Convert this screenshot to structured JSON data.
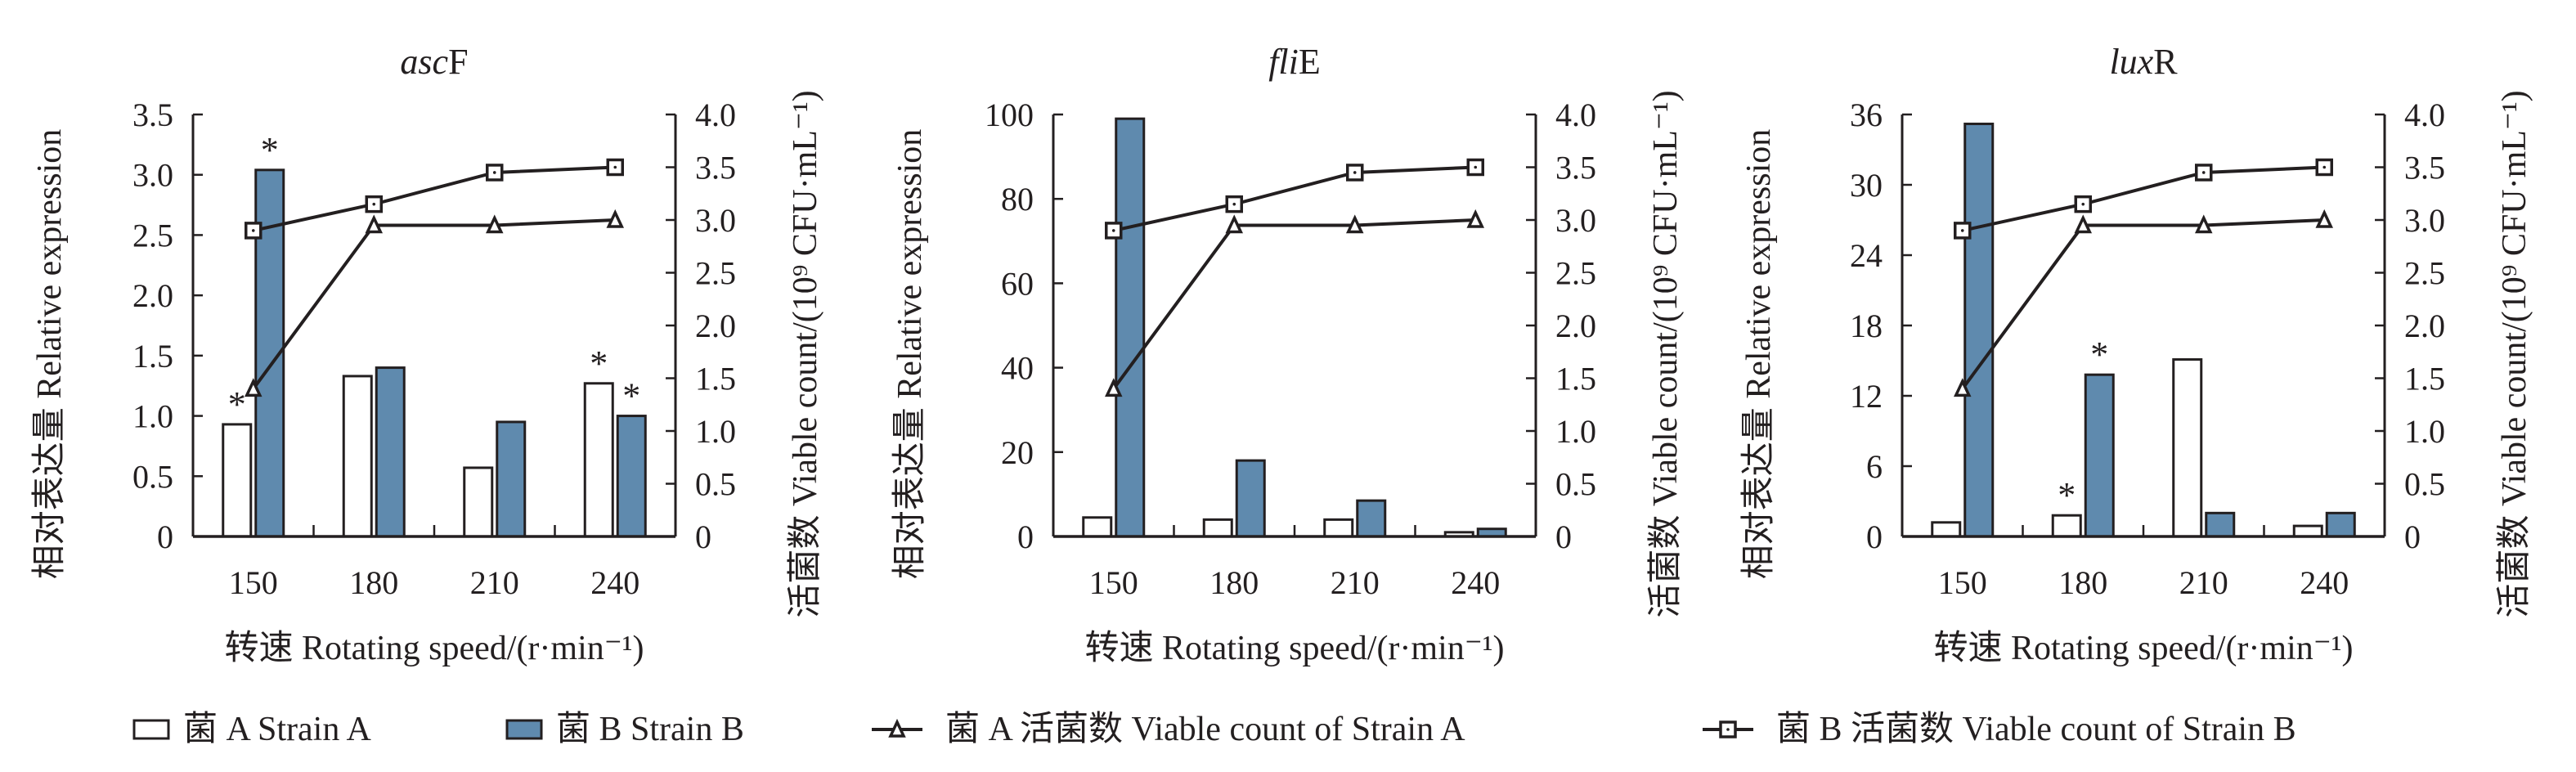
{
  "colors": {
    "strain_b": "#5f8aae",
    "strain_a": "#ffffff",
    "axis": "#231f20"
  },
  "legend": [
    {
      "label": "菌 A Strain A",
      "marker": "white-bar"
    },
    {
      "label": "菌 B Strain B",
      "marker": "blue-bar"
    },
    {
      "label": "菌 A 活菌数 Viable count of Strain A",
      "marker": "triangle-line"
    },
    {
      "label": "菌 B 活菌数 Viable count of Strain B",
      "marker": "square-line"
    }
  ],
  "chart_data": [
    {
      "type": "bar",
      "title_italic": "asc",
      "title_rest": "F",
      "categories": [
        "150",
        "180",
        "210",
        "240"
      ],
      "xlabel": "转速 Rotating speed/(r·min⁻¹)",
      "ylabel": "相对表达量 Relative expression",
      "y2label": "活菌数 Viable count/(10⁹ CFU·mL⁻¹)",
      "ylim": [
        0,
        3.5
      ],
      "yticks": [
        "0",
        "0.5",
        "1.0",
        "1.5",
        "2.0",
        "2.5",
        "3.0",
        "3.5"
      ],
      "y2lim": [
        0,
        4.0
      ],
      "y2ticks": [
        "0",
        "0.5",
        "1.0",
        "1.5",
        "2.0",
        "2.5",
        "3.0",
        "3.5",
        "4.0"
      ],
      "series": [
        {
          "name": "菌 A Strain A",
          "kind": "bar",
          "values": [
            0.93,
            1.33,
            0.57,
            1.27
          ],
          "significant": [
            true,
            false,
            false,
            true
          ]
        },
        {
          "name": "菌 B Strain B",
          "kind": "bar",
          "values": [
            3.04,
            1.4,
            0.95,
            1.0
          ],
          "significant": [
            true,
            false,
            false,
            true
          ]
        },
        {
          "name": "菌 A 活菌数 Viable count of Strain A",
          "kind": "line",
          "axis": "right",
          "values": [
            1.4,
            2.95,
            2.95,
            3.0
          ]
        },
        {
          "name": "菌 B 活菌数 Viable count of Strain B",
          "kind": "line",
          "axis": "right",
          "values": [
            2.9,
            3.15,
            3.45,
            3.5
          ]
        }
      ],
      "sig_mark": "*"
    },
    {
      "type": "bar",
      "title_italic": "fli",
      "title_rest": "E",
      "categories": [
        "150",
        "180",
        "210",
        "240"
      ],
      "xlabel": "转速 Rotating speed/(r·min⁻¹)",
      "ylabel": "相对表达量 Relative expression",
      "y2label": "活菌数 Viable count/(10⁹ CFU·mL⁻¹)",
      "ylim": [
        0,
        100
      ],
      "yticks": [
        "0",
        "20",
        "40",
        "60",
        "80",
        "100"
      ],
      "y2lim": [
        0,
        4.0
      ],
      "y2ticks": [
        "0",
        "0.5",
        "1.0",
        "1.5",
        "2.0",
        "2.5",
        "3.0",
        "3.5",
        "4.0"
      ],
      "series": [
        {
          "name": "菌 A Strain A",
          "kind": "bar",
          "values": [
            4.5,
            4.0,
            4.0,
            1.0
          ],
          "significant": [
            false,
            false,
            false,
            false
          ]
        },
        {
          "name": "菌 B Strain B",
          "kind": "bar",
          "values": [
            99,
            18,
            8.5,
            1.8
          ],
          "significant": [
            false,
            false,
            false,
            false
          ]
        },
        {
          "name": "菌 A 活菌数 Viable count of Strain A",
          "kind": "line",
          "axis": "right",
          "values": [
            1.4,
            2.95,
            2.95,
            3.0
          ]
        },
        {
          "name": "菌 B 活菌数 Viable count of Strain B",
          "kind": "line",
          "axis": "right",
          "values": [
            2.9,
            3.15,
            3.45,
            3.5
          ]
        }
      ],
      "sig_mark": "*"
    },
    {
      "type": "bar",
      "title_italic": "lux",
      "title_rest": "R",
      "categories": [
        "150",
        "180",
        "210",
        "240"
      ],
      "xlabel": "转速 Rotating speed/(r·min⁻¹)",
      "ylabel": "相对表达量 Relative expression",
      "y2label": "活菌数 Viable count/(10⁹ CFU·mL⁻¹)",
      "ylim": [
        0,
        36
      ],
      "yticks": [
        "0",
        "6",
        "12",
        "18",
        "24",
        "30",
        "36"
      ],
      "y2lim": [
        0,
        4.0
      ],
      "y2ticks": [
        "0",
        "0.5",
        "1.0",
        "1.5",
        "2.0",
        "2.5",
        "3.0",
        "3.5",
        "4.0"
      ],
      "series": [
        {
          "name": "菌 A Strain A",
          "kind": "bar",
          "values": [
            1.2,
            1.8,
            15.1,
            0.9
          ],
          "significant": [
            false,
            true,
            false,
            false
          ]
        },
        {
          "name": "菌 B Strain B",
          "kind": "bar",
          "values": [
            35.2,
            13.8,
            2.0,
            2.0
          ],
          "significant": [
            false,
            true,
            false,
            false
          ]
        },
        {
          "name": "菌 A 活菌数 Viable count of Strain A",
          "kind": "line",
          "axis": "right",
          "values": [
            1.4,
            2.95,
            2.95,
            3.0
          ]
        },
        {
          "name": "菌 B 活菌数 Viable count of Strain B",
          "kind": "line",
          "axis": "right",
          "values": [
            2.9,
            3.15,
            3.45,
            3.5
          ]
        }
      ],
      "sig_mark": "*"
    }
  ]
}
